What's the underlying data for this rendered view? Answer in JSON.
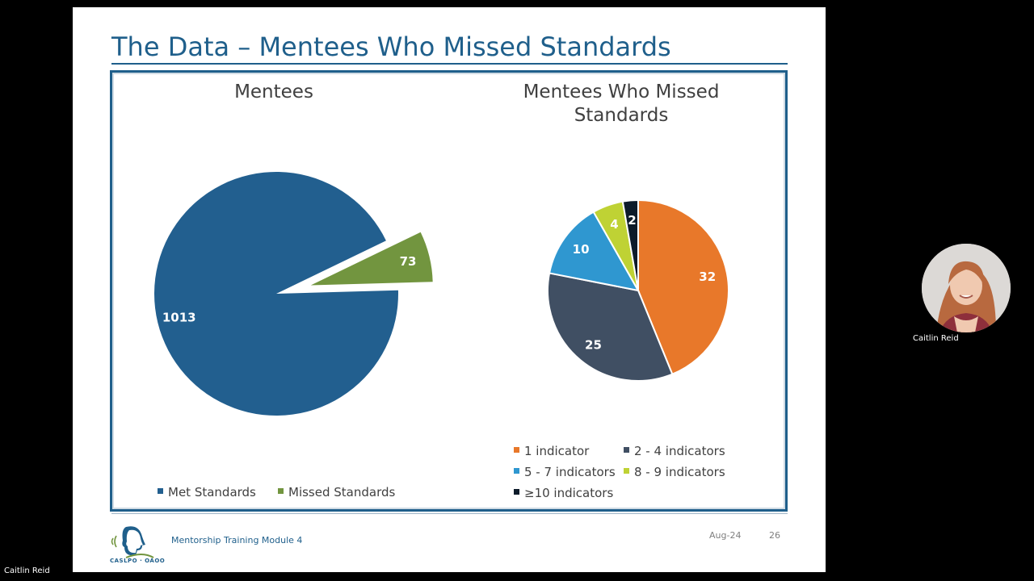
{
  "slide": {
    "title": "The Data – Mentees Who Missed Standards",
    "footer_module": "Mentorship Training Module 4",
    "footer_date": "Aug-24",
    "footer_page": "26",
    "logo_text": "CASLPO · OAOO"
  },
  "meeting": {
    "speaker_name": "Caitlin Reid",
    "self_name": "Caitlin Reid"
  },
  "colors": {
    "title_blue": "#1f5f8b",
    "met": "#225f8f",
    "missed": "#72953f",
    "ind1": "#e8782a",
    "ind2_4": "#404f63",
    "ind5_7": "#2f97d0",
    "ind8_9": "#bfd234",
    "ind10": "#0d1b2a"
  },
  "chart_data": [
    {
      "type": "pie",
      "title": "Mentees",
      "categories": [
        "Met Standards",
        "Missed Standards"
      ],
      "values": [
        1013,
        73
      ],
      "exploded": [
        "Missed Standards"
      ],
      "legend": "bottom"
    },
    {
      "type": "pie",
      "title": "Mentees Who Missed Standards",
      "categories": [
        "1 indicator",
        "2 - 4 indicators",
        "5 - 7 indicators",
        "8 - 9 indicators",
        "≥10 indicators"
      ],
      "values": [
        32,
        25,
        10,
        4,
        2
      ],
      "legend": "bottom"
    }
  ]
}
